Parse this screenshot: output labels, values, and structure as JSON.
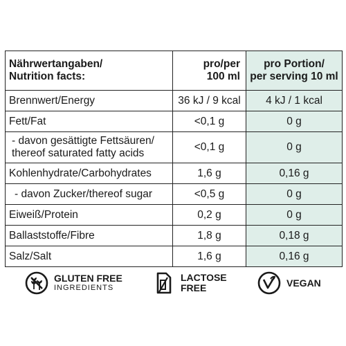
{
  "table": {
    "header": {
      "col1": [
        "Nährwertangaben/",
        "Nutrition facts:"
      ],
      "col2": [
        "pro/per",
        "100 ml"
      ],
      "col3": [
        "pro Portion/",
        "per serving 10 ml"
      ]
    },
    "rows": [
      {
        "label": [
          "Brennwert/Energy"
        ],
        "per100": "36 kJ / 9 kcal",
        "perServing": "4 kJ / 1 kcal"
      },
      {
        "label": [
          "Fett/Fat"
        ],
        "per100": "<0,1 g",
        "perServing": "0 g"
      },
      {
        "label": [
          "- davon gesättigte Fettsäuren/",
          "thereof saturated fatty acids"
        ],
        "per100": "<0,1 g",
        "perServing": "0 g"
      },
      {
        "label": [
          "Kohlenhydrate/Carbohydrates"
        ],
        "per100": "1,6 g",
        "perServing": "0,16 g"
      },
      {
        "label": [
          " - davon Zucker/thereof sugar"
        ],
        "per100": "<0,5 g",
        "perServing": "0 g"
      },
      {
        "label": [
          "Eiweiß/Protein"
        ],
        "per100": "0,2 g",
        "perServing": "0 g"
      },
      {
        "label": [
          "Ballaststoffe/Fibre"
        ],
        "per100": "1,8 g",
        "perServing": "0,18 g"
      },
      {
        "label": [
          "Salz/Salt"
        ],
        "per100": "1,6 g",
        "perServing": "0,16 g"
      }
    ]
  },
  "badges": {
    "gluten": {
      "line1": "GLUTEN FREE",
      "line2": "INGREDIENTS",
      "icon": "wheat-icon"
    },
    "lactose": {
      "line1": "LACTOSE",
      "line2": "FREE",
      "icon": "milk-carton-icon"
    },
    "vegan": {
      "line1": "VEGAN",
      "icon": "vegan-check-icon"
    }
  },
  "colors": {
    "highlight": "#dfeee9",
    "border": "#222222",
    "text": "#1a1a1a"
  }
}
